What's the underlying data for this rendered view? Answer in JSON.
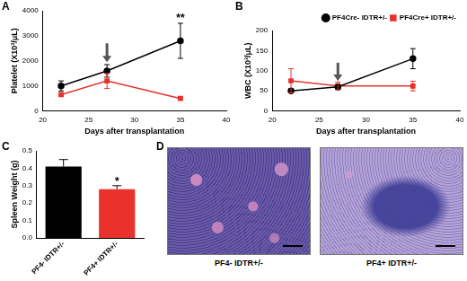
{
  "chart_data": [
    {
      "panel": "A",
      "type": "line",
      "x_label": "Days after transplantation",
      "y_label": "Platelet (X10³/μL)",
      "xlim": [
        20,
        40
      ],
      "xticks": [
        20,
        25,
        30,
        35,
        40
      ],
      "ylim": [
        0,
        4000
      ],
      "yticks": [
        0,
        1000,
        2000,
        3000,
        4000
      ],
      "grid": false,
      "series": [
        {
          "color": "#000000",
          "marker": "circle",
          "line_style": "solid",
          "x": [
            22,
            27,
            35
          ],
          "values": [
            1000,
            1600,
            2800
          ],
          "errors": [
            200,
            250,
            700
          ]
        },
        {
          "color": "#e8322b",
          "marker": "square",
          "line_style": "solid",
          "x": [
            22,
            27,
            35
          ],
          "values": [
            650,
            1200,
            500
          ],
          "errors": [
            60,
            300,
            50
          ]
        }
      ],
      "annotations": [
        {
          "text": "**",
          "x": 35,
          "y": 3700
        }
      ],
      "arrow": {
        "x": 27,
        "y_start": 2700,
        "y_end": 1950
      }
    },
    {
      "panel": "B",
      "type": "line",
      "x_label": "Days after transplantation",
      "y_label": "WBC (X10³/μL)",
      "xlim": [
        20,
        40
      ],
      "xticks": [
        20,
        25,
        30,
        35,
        40
      ],
      "ylim": [
        0,
        200
      ],
      "yticks": [
        0,
        50,
        100,
        150,
        200
      ],
      "grid": false,
      "legend": "upper right",
      "series": [
        {
          "name": "PF4Cre- IDTR+/-",
          "color": "#000000",
          "marker": "circle",
          "line_style": "solid",
          "x": [
            22,
            27,
            35
          ],
          "values": [
            50,
            60,
            130
          ],
          "errors": [
            5,
            5,
            25
          ]
        },
        {
          "name": "PF4Cre+ IDTR+/-",
          "color": "#e8322b",
          "marker": "square",
          "line_style": "solid",
          "x": [
            22,
            27,
            35
          ],
          "values": [
            75,
            62,
            62
          ],
          "errors": [
            30,
            10,
            12
          ]
        }
      ],
      "annotations": [],
      "arrow": {
        "x": 27,
        "y_start": 120,
        "y_end": 75
      }
    },
    {
      "panel": "C",
      "type": "bar",
      "y_label": "Spleen Weight (g)",
      "categories": [
        "PF4- IDTR+/-",
        "PF4+ IDTR+/-"
      ],
      "values": [
        0.41,
        0.28
      ],
      "errors": [
        0.04,
        0.02
      ],
      "colors": [
        "#000000",
        "#e8322b"
      ],
      "ylim": [
        0,
        0.5
      ],
      "yticks": [
        {
          "value": 0,
          "label": "0.0"
        },
        0.1,
        0.2,
        0.3,
        0.4,
        0.5
      ],
      "grid": false,
      "annotations": [
        {
          "text": "*",
          "x": "PF4+ IDTR+/-",
          "y": 0.32
        }
      ]
    }
  ],
  "panel_d": {
    "panel": "D",
    "images": [
      {
        "caption": "PF4- IDTR+/-"
      },
      {
        "caption": "PF4+ IDTR+/-"
      }
    ]
  }
}
